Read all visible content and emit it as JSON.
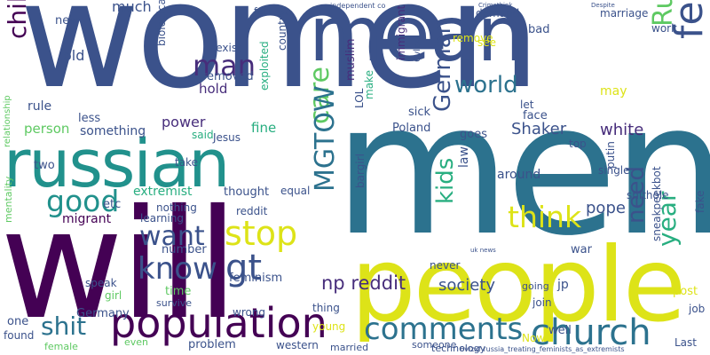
{
  "palette": {
    "navy": "#3b528b",
    "teal": "#21918c",
    "purple": "#440154",
    "indigo": "#472d7b",
    "blue": "#2c728e",
    "green": "#28ae80",
    "lime": "#5ec962",
    "yellow": "#dde318"
  },
  "words": [
    {
      "text": "women",
      "color": "#3b528b"
    },
    {
      "text": "men",
      "color": "#2c728e"
    },
    {
      "text": "will",
      "color": "#440154"
    },
    {
      "text": "people",
      "color": "#dde318"
    },
    {
      "text": "russian",
      "color": "#21918c"
    },
    {
      "text": "population",
      "color": "#440154"
    },
    {
      "text": "church",
      "color": "#2c728e"
    },
    {
      "text": "comments",
      "color": "#2c728e"
    },
    {
      "text": "mean",
      "color": "#3b528b"
    },
    {
      "text": "feminist",
      "color": "#3b528b"
    },
    {
      "text": "Russia",
      "color": "#5ec962"
    },
    {
      "text": "year",
      "color": "#28ae80"
    },
    {
      "text": "children",
      "color": "#440154"
    },
    {
      "text": "man",
      "color": "#472d7b"
    },
    {
      "text": "world",
      "color": "#2c728e"
    },
    {
      "text": "care",
      "color": "#5ec962"
    },
    {
      "text": "German",
      "color": "#3b528b"
    },
    {
      "text": "MGTOW",
      "color": "#2c728e"
    },
    {
      "text": "think",
      "color": "#dde318"
    },
    {
      "text": "kids",
      "color": "#28ae80"
    },
    {
      "text": "good",
      "color": "#21918c"
    },
    {
      "text": "want",
      "color": "#3b528b"
    },
    {
      "text": "stop",
      "color": "#dde318"
    },
    {
      "text": "know",
      "color": "#3b528b"
    },
    {
      "text": "gt",
      "color": "#3b528b"
    },
    {
      "text": "need",
      "color": "#3b528b"
    },
    {
      "text": "shit",
      "color": "#2c728e"
    },
    {
      "text": "np reddit",
      "color": "#472d7b"
    },
    {
      "text": "society",
      "color": "#3b528b"
    },
    {
      "text": "pope",
      "color": "#3b528b"
    },
    {
      "text": "white",
      "color": "#472d7b"
    },
    {
      "text": "Shaker",
      "color": "#3b528b"
    },
    {
      "text": "old",
      "color": "#3b528b"
    },
    {
      "text": "much",
      "color": "#3b528b"
    },
    {
      "text": "new",
      "color": "#3b528b"
    },
    {
      "text": "rule",
      "color": "#3b528b"
    },
    {
      "text": "less",
      "color": "#3b528b"
    },
    {
      "text": "person",
      "color": "#5ec962"
    },
    {
      "text": "something",
      "color": "#3b528b"
    },
    {
      "text": "two",
      "color": "#3b528b"
    },
    {
      "text": "power",
      "color": "#472d7b"
    },
    {
      "text": "removed",
      "color": "#3b528b"
    },
    {
      "text": "hold",
      "color": "#472d7b"
    },
    {
      "text": "said",
      "color": "#28ae80"
    },
    {
      "text": "Jesus",
      "color": "#3b528b"
    },
    {
      "text": "sexist",
      "color": "#3b528b"
    },
    {
      "text": "fact",
      "color": "#3b528b"
    },
    {
      "text": "country",
      "color": "#3b528b"
    },
    {
      "text": "biological",
      "color": "#3b528b"
    },
    {
      "text": "exploited",
      "color": "#28ae80"
    },
    {
      "text": "fine",
      "color": "#28ae80"
    },
    {
      "text": "muslim",
      "color": "#472d7b"
    },
    {
      "text": "LOL",
      "color": "#3b528b"
    },
    {
      "text": "make",
      "color": "#28ae80"
    },
    {
      "text": "immigrant",
      "color": "#472d7b"
    },
    {
      "text": "sick",
      "color": "#3b528b"
    },
    {
      "text": "demand",
      "color": "#3b528b"
    },
    {
      "text": "bad",
      "color": "#3b528b"
    },
    {
      "text": "remove",
      "color": "#dde318"
    },
    {
      "text": "see",
      "color": "#dde318"
    },
    {
      "text": "marriage",
      "color": "#3b528b"
    },
    {
      "text": "work",
      "color": "#3b528b"
    },
    {
      "text": "let",
      "color": "#3b528b"
    },
    {
      "text": "face",
      "color": "#3b528b"
    },
    {
      "text": "may",
      "color": "#dde318"
    },
    {
      "text": "goes",
      "color": "#3b528b"
    },
    {
      "text": "Poland",
      "color": "#3b528b"
    },
    {
      "text": "top",
      "color": "#3b528b"
    },
    {
      "text": "extremist",
      "color": "#28ae80"
    },
    {
      "text": "take",
      "color": "#3b528b"
    },
    {
      "text": "thought",
      "color": "#3b528b"
    },
    {
      "text": "equal",
      "color": "#3b528b"
    },
    {
      "text": "law",
      "color": "#3b528b"
    },
    {
      "text": "around",
      "color": "#3b528b"
    },
    {
      "text": "putin",
      "color": "#3b528b"
    },
    {
      "text": "single",
      "color": "#3b528b"
    },
    {
      "text": "shithole",
      "color": "#3b528b"
    },
    {
      "text": "fake",
      "color": "#3b528b"
    },
    {
      "text": "etc",
      "color": "#3b528b"
    },
    {
      "text": "nothing",
      "color": "#3b528b"
    },
    {
      "text": "learning",
      "color": "#3b528b"
    },
    {
      "text": "reddit",
      "color": "#3b528b"
    },
    {
      "text": "migrant",
      "color": "#440154"
    },
    {
      "text": "mentality",
      "color": "#5ec962"
    },
    {
      "text": "relationship",
      "color": "#5ec962"
    },
    {
      "text": "number",
      "color": "#3b528b"
    },
    {
      "text": "feminism",
      "color": "#3b528b"
    },
    {
      "text": "bargirl",
      "color": "#3b528b"
    },
    {
      "text": "war",
      "color": "#3b528b"
    },
    {
      "text": "jp",
      "color": "#3b528b"
    },
    {
      "text": "never",
      "color": "#3b528b"
    },
    {
      "text": "speak",
      "color": "#3b528b"
    },
    {
      "text": "girl",
      "color": "#5ec962"
    },
    {
      "text": "survive",
      "color": "#3b528b"
    },
    {
      "text": "time",
      "color": "#5ec962"
    },
    {
      "text": "wrong",
      "color": "#3b528b"
    },
    {
      "text": "thing",
      "color": "#3b528b"
    },
    {
      "text": "going",
      "color": "#3b528b"
    },
    {
      "text": "join",
      "color": "#3b528b"
    },
    {
      "text": "well",
      "color": "#3b528b"
    },
    {
      "text": "post",
      "color": "#dde318"
    },
    {
      "text": "job",
      "color": "#3b528b"
    },
    {
      "text": "Germany",
      "color": "#3b528b"
    },
    {
      "text": "sneakpeekbot",
      "color": "#3b528b"
    },
    {
      "text": "one",
      "color": "#3b528b"
    },
    {
      "text": "found",
      "color": "#3b528b"
    },
    {
      "text": "female",
      "color": "#5ec962"
    },
    {
      "text": "even",
      "color": "#5ec962"
    },
    {
      "text": "problem",
      "color": "#3b528b"
    },
    {
      "text": "western",
      "color": "#3b528b"
    },
    {
      "text": "young",
      "color": "#dde318"
    },
    {
      "text": "married",
      "color": "#3b528b"
    },
    {
      "text": "Now",
      "color": "#dde318"
    },
    {
      "text": "someone",
      "color": "#3b528b"
    },
    {
      "text": "technology",
      "color": "#3b528b"
    },
    {
      "text": "Last",
      "color": "#3b528b"
    },
    {
      "text": "independent co",
      "color": "#3b528b"
    },
    {
      "text": "Crimethink",
      "color": "#3b528b"
    },
    {
      "text": "Despite",
      "color": "#3b528b"
    },
    {
      "text": "6vlzxf",
      "color": "#3b528b"
    },
    {
      "text": "6vlzxf russia_treating_feminists_as_extremists",
      "color": "#3b528b"
    },
    {
      "text": "uk news",
      "color": "#3b528b"
    }
  ]
}
